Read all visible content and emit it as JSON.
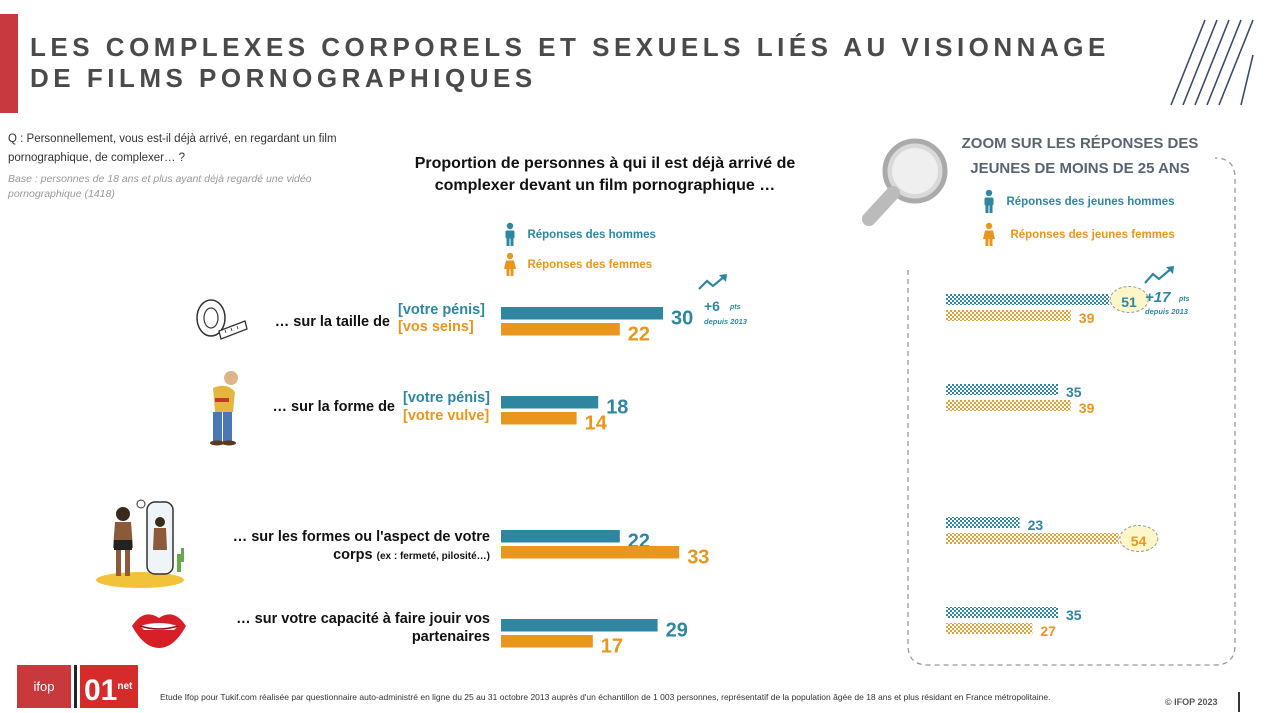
{
  "header": {
    "title": "LES COMPLEXES CORPORELS ET SEXUELS LIÉS AU VISIONNAGE DE FILMS PORNOGRAPHIQUES"
  },
  "question": "Q : Personnellement, vous est-il déjà arrivé, en regardant un film pornographique, de complexer… ?",
  "base": "Base : personnes de 18 ans et plus ayant déjà regardé une vidéo pornographique (1418)",
  "colors": {
    "men": "#2e86a0",
    "women": "#e8961e",
    "accent": "#c8393d"
  },
  "chart_data": [
    {
      "type": "bar",
      "title": "Proportion de personnes à qui il est déjà arrivé de complexer devant un film pornographique …",
      "legend": [
        "Réponses des hommes",
        "Réponses des femmes"
      ],
      "categories": [
        "… sur la taille de",
        "… sur la forme de",
        "… sur les formes ou l'aspect de votre corps",
        "… sur votre capacité à faire jouir vos partenaires"
      ],
      "sub_labels": [
        [
          "[votre pénis]",
          "[vos seins]"
        ],
        [
          "[votre pénis]",
          "[votre vulve]"
        ],
        [
          "(ex : fermeté, pilosité…)"
        ],
        []
      ],
      "series": [
        {
          "name": "Réponses des hommes",
          "values": [
            30,
            18,
            22,
            29
          ]
        },
        {
          "name": "Réponses des femmes",
          "values": [
            22,
            14,
            33,
            17
          ]
        }
      ],
      "annotation": {
        "value": "+6",
        "unit": "pts",
        "since": "depuis 2013"
      }
    },
    {
      "type": "bar",
      "title": "ZOOM SUR LES RÉPONSES DES JEUNES DE MOINS DE 25 ANS",
      "legend": [
        "Réponses des jeunes hommes",
        "Réponses des jeunes femmes"
      ],
      "series": [
        {
          "name": "Réponses des jeunes hommes",
          "values": [
            51,
            35,
            23,
            35
          ]
        },
        {
          "name": "Réponses des jeunes femmes",
          "values": [
            39,
            39,
            54,
            27
          ]
        }
      ],
      "highlighted": [
        [
          "men",
          0
        ],
        [
          "women",
          2
        ]
      ],
      "annotation": {
        "value": "+17",
        "unit": "pts",
        "since": "depuis 2013"
      }
    }
  ],
  "footer": {
    "note": "Etude Ifop pour Tukif.com réalisée par questionnaire auto-administré en ligne du 25 au 31 octobre 2013 auprès d'un échantillon de 1 003 personnes, représentatif de la population âgée de 18 ans et plus résidant en France métropolitaine.",
    "copyright": "© IFOP 2023",
    "logo_ifop": "ifop",
    "logo_01": "01",
    "logo_01_sup": "net"
  }
}
